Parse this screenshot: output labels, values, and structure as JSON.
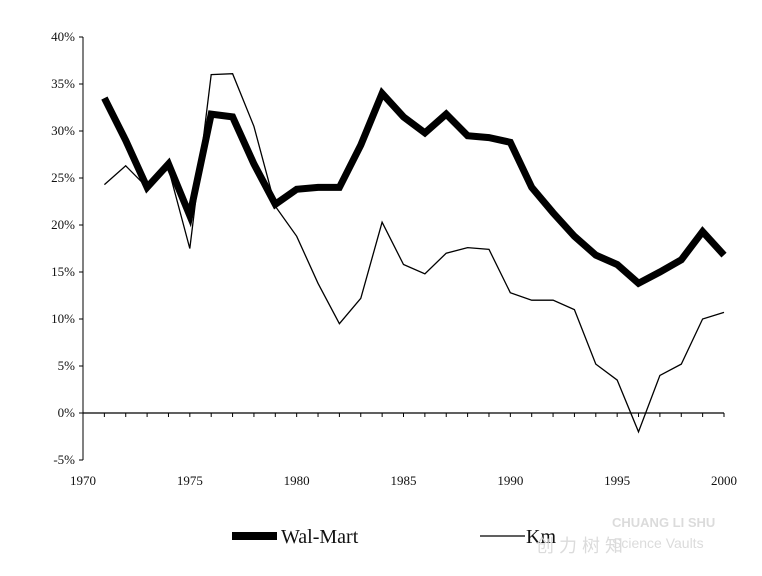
{
  "chart_data": {
    "type": "line",
    "title": "",
    "xlabel": "",
    "ylabel": "",
    "xlim": [
      1970,
      2000
    ],
    "ylim": [
      -5,
      40
    ],
    "x_ticks": [
      "1970",
      "1975",
      "1980",
      "1985",
      "1990",
      "1995",
      "2000"
    ],
    "y_ticks": [
      "40%",
      "35%",
      "30%",
      "25%",
      "20%",
      "15%",
      "10%",
      "5%",
      "0%",
      "-5%"
    ],
    "grid": false,
    "legend_position": "bottom",
    "series": [
      {
        "name": "Wal-Mart",
        "color": "#000000",
        "style": "thick",
        "x": [
          1971,
          1972,
          1973,
          1974,
          1975,
          1976,
          1977,
          1978,
          1979,
          1980,
          1981,
          1982,
          1983,
          1984,
          1985,
          1986,
          1987,
          1988,
          1989,
          1990,
          1991,
          1992,
          1993,
          1994,
          1995,
          1996,
          1997,
          1998,
          1999,
          2000
        ],
        "y": [
          33.5,
          29,
          24,
          26.5,
          21,
          31.8,
          31.5,
          26.5,
          22.2,
          23.8,
          24,
          24,
          28.5,
          34,
          31.5,
          29.8,
          31.8,
          29.5,
          29.3,
          28.8,
          24,
          21.3,
          18.8,
          16.8,
          15.8,
          13.8,
          15,
          16.3,
          19.3,
          16.8
        ]
      },
      {
        "name": "Km",
        "color": "#000000",
        "style": "thin",
        "x": [
          1971,
          1972,
          1973,
          1974,
          1975,
          1976,
          1977,
          1978,
          1979,
          1980,
          1981,
          1982,
          1983,
          1984,
          1985,
          1986,
          1987,
          1988,
          1989,
          1990,
          1991,
          1992,
          1993,
          1994,
          1995,
          1996,
          1997,
          1998,
          1999,
          2000
        ],
        "y": [
          24.3,
          26.3,
          24,
          26,
          17.5,
          36,
          36.1,
          30.5,
          22,
          18.8,
          13.8,
          9.5,
          12.2,
          20.3,
          15.8,
          14.8,
          17,
          17.6,
          17.4,
          12.8,
          12,
          12,
          11,
          5.2,
          3.5,
          -2,
          4,
          5.2,
          10,
          10.7
        ]
      }
    ]
  },
  "watermark": {
    "top_text": "CHUANG LI SHU",
    "mid_text": "Science Vaults",
    "cn_text": "创 力 树 知"
  }
}
